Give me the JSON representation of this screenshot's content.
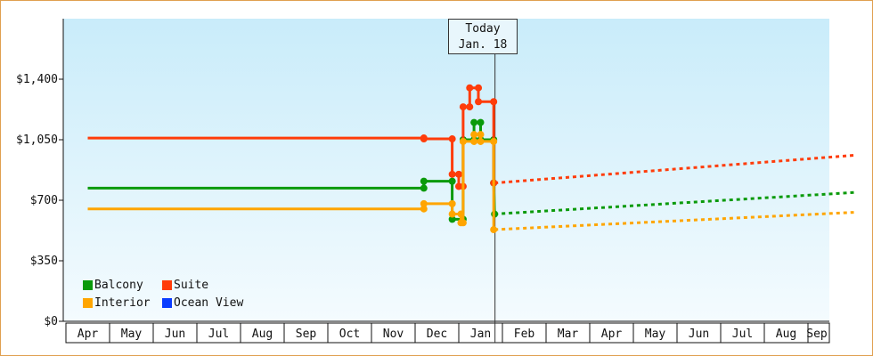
{
  "chart_data": {
    "type": "line",
    "x_unit": "month",
    "categories": [
      "Apr",
      "May",
      "Jun",
      "Jul",
      "Aug",
      "Sep",
      "Oct",
      "Nov",
      "Dec",
      "Jan",
      "Feb",
      "Mar",
      "Apr",
      "May",
      "Jun",
      "Jul",
      "Aug",
      "Sep"
    ],
    "y_ticks": [
      "$0",
      "$350",
      "$700",
      "$1,050",
      "$1,400"
    ],
    "ylim": [
      0,
      1750
    ],
    "grid": false,
    "legend_position": "bottom-left",
    "today_marker": {
      "line1": "Today",
      "line2": "Jan. 18",
      "x": 9.32
    },
    "series": [
      {
        "name": "Balcony",
        "color": "#0a9a0a",
        "actual": [
          [
            0,
            770
          ],
          [
            7.7,
            770
          ],
          [
            7.7,
            810
          ],
          [
            8.35,
            810
          ],
          [
            8.35,
            590
          ],
          [
            8.6,
            590
          ],
          [
            8.6,
            1050
          ],
          [
            8.85,
            1050
          ],
          [
            8.85,
            1150
          ],
          [
            9.0,
            1150
          ],
          [
            9.0,
            1050
          ],
          [
            9.3,
            1050
          ],
          [
            9.3,
            800
          ],
          [
            9.32,
            620
          ]
        ],
        "forecast": [
          [
            9.32,
            620
          ],
          [
            17.55,
            745
          ]
        ]
      },
      {
        "name": "Suite",
        "color": "#ff3c0a",
        "actual": [
          [
            0,
            1060
          ],
          [
            7.7,
            1060
          ],
          [
            7.7,
            1055
          ],
          [
            8.35,
            1055
          ],
          [
            8.35,
            850
          ],
          [
            8.5,
            850
          ],
          [
            8.5,
            780
          ],
          [
            8.6,
            780
          ],
          [
            8.6,
            1240
          ],
          [
            8.75,
            1240
          ],
          [
            8.75,
            1350
          ],
          [
            8.95,
            1350
          ],
          [
            8.95,
            1270
          ],
          [
            9.3,
            1270
          ],
          [
            9.3,
            800
          ],
          [
            9.32,
            800
          ]
        ],
        "forecast": [
          [
            9.32,
            800
          ],
          [
            17.55,
            960
          ]
        ]
      },
      {
        "name": "Interior",
        "color": "#ffa500",
        "actual": [
          [
            0,
            650
          ],
          [
            7.7,
            650
          ],
          [
            7.7,
            680
          ],
          [
            8.35,
            680
          ],
          [
            8.35,
            620
          ],
          [
            8.55,
            620
          ],
          [
            8.55,
            570
          ],
          [
            8.6,
            570
          ],
          [
            8.6,
            1040
          ],
          [
            8.85,
            1040
          ],
          [
            8.85,
            1080
          ],
          [
            9.0,
            1080
          ],
          [
            9.0,
            1040
          ],
          [
            9.3,
            1040
          ],
          [
            9.3,
            530
          ],
          [
            9.32,
            530
          ]
        ],
        "forecast": [
          [
            9.32,
            530
          ],
          [
            17.55,
            630
          ]
        ]
      },
      {
        "name": "Ocean View",
        "color": "#0a3cff",
        "actual": [],
        "forecast": []
      }
    ]
  }
}
